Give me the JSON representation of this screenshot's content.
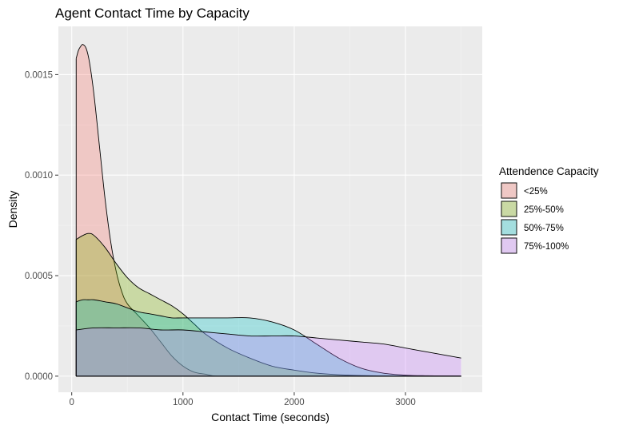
{
  "chart_data": {
    "type": "area",
    "title": "Agent Contact Time by Capacity",
    "xlabel": "Contact Time (seconds)",
    "ylabel": "Density",
    "xlim": [
      -120,
      3690
    ],
    "ylim": [
      -8e-05,
      0.00174
    ],
    "x_ticks": [
      0,
      1000,
      2000,
      3000
    ],
    "x_tick_labels": [
      "0",
      "1000",
      "2000",
      "3000"
    ],
    "y_ticks": [
      0,
      0.0005,
      0.001,
      0.0015
    ],
    "y_tick_labels": [
      "0.0000",
      "0.0005",
      "0.0010",
      "0.0015"
    ],
    "grid": true,
    "legend": {
      "title": "Attendence Capacity",
      "placement": "right"
    },
    "colors": {
      "panel_background": "#ebebeb",
      "grid_major": "#ffffff",
      "outline": "#000000"
    },
    "series": [
      {
        "name": "<25%",
        "color": "#f8766d",
        "x": [
          40,
          60,
          80,
          100,
          130,
          160,
          200,
          250,
          300,
          350,
          400,
          450,
          500,
          600,
          700,
          800,
          900,
          1000,
          1100,
          1200,
          1300,
          1500,
          2000,
          2500,
          3000,
          3500
        ],
        "values": [
          0.00158,
          0.00162,
          0.00164,
          0.00165,
          0.00163,
          0.00156,
          0.0014,
          0.00114,
          0.00088,
          0.00067,
          0.00052,
          0.00042,
          0.00036,
          0.0003,
          0.00024,
          0.00017,
          0.0001,
          5e-05,
          2e-05,
          1e-05,
          0.0,
          0.0,
          0.0,
          0.0,
          0.0,
          0.0
        ]
      },
      {
        "name": "25%-50%",
        "color": "#7cae00",
        "x": [
          40,
          100,
          150,
          200,
          300,
          400,
          500,
          600,
          700,
          800,
          900,
          1000,
          1100,
          1200,
          1400,
          1600,
          1800,
          2000,
          2200,
          2400,
          2600,
          2800,
          3000,
          3500
        ],
        "values": [
          0.00068,
          0.0007,
          0.00071,
          0.0007,
          0.00064,
          0.00056,
          0.00049,
          0.00044,
          0.00041,
          0.00038,
          0.00035,
          0.00031,
          0.00026,
          0.00021,
          0.00014,
          9e-05,
          5e-05,
          3e-05,
          1.5e-05,
          7e-06,
          3e-06,
          1e-06,
          0.0,
          0.0
        ]
      },
      {
        "name": "50%-75%",
        "color": "#00bfc4",
        "x": [
          40,
          100,
          150,
          200,
          300,
          400,
          500,
          600,
          700,
          800,
          900,
          1000,
          1200,
          1400,
          1600,
          1800,
          2000,
          2200,
          2400,
          2600,
          2800,
          3000,
          3200,
          3500
        ],
        "values": [
          0.00037,
          0.00038,
          0.00038,
          0.00038,
          0.00037,
          0.00036,
          0.00034,
          0.00032,
          0.00031,
          0.0003,
          0.00029,
          0.00029,
          0.00029,
          0.00029,
          0.00029,
          0.00027,
          0.00023,
          0.00016,
          9e-05,
          4e-05,
          1.5e-05,
          5e-06,
          2e-06,
          0.0
        ]
      },
      {
        "name": "75%-100%",
        "color": "#c77cff",
        "x": [
          40,
          200,
          400,
          600,
          800,
          1000,
          1200,
          1400,
          1600,
          1800,
          2000,
          2200,
          2400,
          2600,
          2800,
          3000,
          3200,
          3400,
          3500
        ],
        "values": [
          0.00023,
          0.00024,
          0.00024,
          0.00024,
          0.00023,
          0.00023,
          0.00022,
          0.00021,
          0.0002,
          0.0002,
          0.0002,
          0.00019,
          0.00018,
          0.00017,
          0.00016,
          0.00014,
          0.00012,
          0.0001,
          9e-05
        ]
      }
    ]
  }
}
